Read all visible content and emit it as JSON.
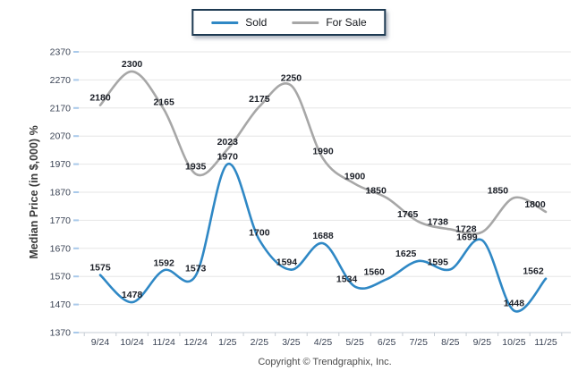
{
  "legend": {
    "items": [
      {
        "label": "Sold"
      },
      {
        "label": "For Sale"
      }
    ]
  },
  "chart_data": {
    "type": "line",
    "categories": [
      "9/24",
      "10/24",
      "11/24",
      "12/24",
      "1/25",
      "2/25",
      "3/25",
      "4/25",
      "5/25",
      "6/25",
      "7/25",
      "8/25",
      "9/25",
      "10/25",
      "11/25"
    ],
    "series": [
      {
        "name": "Sold",
        "color": "#2f88c5",
        "values": [
          1575,
          1478,
          1592,
          1573,
          1970,
          1700,
          1594,
          1688,
          1534,
          1560,
          1625,
          1595,
          1699,
          1448,
          1562
        ]
      },
      {
        "name": "For Sale",
        "color": "#a7a7a7",
        "values": [
          2180,
          2300,
          2165,
          1935,
          2023,
          2175,
          2250,
          1990,
          1900,
          1850,
          1765,
          1738,
          1728,
          1850,
          1800
        ]
      }
    ],
    "title": "",
    "xlabel": "",
    "ylabel": "Median Price (in $,000) %",
    "ylim": [
      1370,
      2370
    ],
    "ytick_step": 100,
    "yticks": [
      2370,
      2270,
      2170,
      2070,
      1970,
      1870,
      1770,
      1670,
      1570,
      1470,
      1370
    ],
    "grid": "horizontal",
    "legend_position": "top-center",
    "data_labels": true,
    "curve": "smooth"
  },
  "footer": {
    "copyright": "Copyright © Trendgraphix, Inc."
  },
  "colors": {
    "sold": "#2f88c5",
    "for_sale": "#a7a7a7",
    "gridline": "#e6e6e6",
    "axis": "#c6ccd4",
    "y_tick": "#a9c9ea",
    "data_label_text": "#1b1f27",
    "tick_text": "#3a4354",
    "legend_border": "#1e3a52"
  }
}
